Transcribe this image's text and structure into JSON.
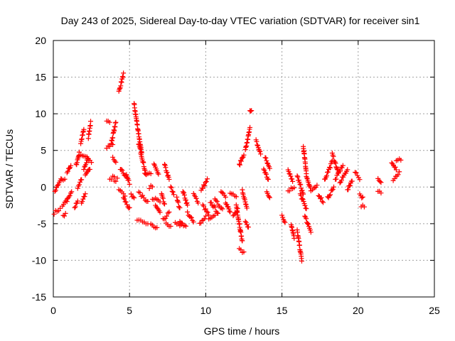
{
  "chart_data": {
    "type": "scatter",
    "title": "Day 243 of 2025, Sidereal Day-to-day VTEC variation (SDTVAR) for receiver sin1",
    "xlabel": "GPS time / hours",
    "ylabel": "SDTVAR / TECUs",
    "xlim": [
      0,
      25
    ],
    "ylim": [
      -15,
      20
    ],
    "x_ticks": [
      0,
      5,
      10,
      15,
      20,
      25
    ],
    "y_ticks": [
      -15,
      -10,
      -5,
      0,
      5,
      10,
      15,
      20
    ],
    "x_tick_labels": [
      "0",
      "5",
      "10",
      "15",
      "20",
      "25"
    ],
    "y_tick_labels": [
      "-15",
      "-10",
      "-5",
      "0",
      "5",
      "10",
      "15",
      "20"
    ],
    "grid": true,
    "marker": "+",
    "series": [
      {
        "name": "sin1",
        "color": "#ff0000",
        "segments": [
          {
            "x": [
              0.05,
              0.45
            ],
            "y": [
              -3.5,
              -3.0
            ]
          },
          {
            "x": [
              0.1,
              0.5
            ],
            "y": [
              -0.6,
              1.0
            ]
          },
          {
            "x": [
              0.6,
              0.9
            ],
            "y": [
              -2.5,
              -1.8
            ]
          },
          {
            "x": [
              0.55,
              0.75
            ],
            "y": [
              1.0,
              0.9
            ]
          },
          {
            "x": [
              0.65,
              0.8
            ],
            "y": [
              -4.0,
              -3.6
            ]
          },
          {
            "x": [
              0.9,
              1.2
            ],
            "y": [
              -1.8,
              -0.8
            ]
          },
          {
            "x": [
              0.9,
              1.15
            ],
            "y": [
              2.0,
              3.0
            ]
          },
          {
            "x": [
              1.4,
              1.6
            ],
            "y": [
              -2.8,
              -2.0
            ]
          },
          {
            "x": [
              1.5,
              1.7
            ],
            "y": [
              3.0,
              4.6
            ]
          },
          {
            "x": [
              1.6,
              1.85
            ],
            "y": [
              0.0,
              1.0
            ]
          },
          {
            "x": [
              1.7,
              2.1
            ],
            "y": [
              4.5,
              4.2
            ]
          },
          {
            "x": [
              1.8,
              2.0
            ],
            "y": [
              6.0,
              7.8
            ]
          },
          {
            "x": [
              1.85,
              2.1
            ],
            "y": [
              -2.2,
              -1.0
            ]
          },
          {
            "x": [
              2.0,
              2.3
            ],
            "y": [
              2.5,
              4.0
            ]
          },
          {
            "x": [
              2.2,
              2.5
            ],
            "y": [
              4.0,
              3.5
            ]
          },
          {
            "x": [
              2.3,
              2.45
            ],
            "y": [
              6.8,
              8.8
            ]
          },
          {
            "x": [
              2.1,
              2.4
            ],
            "y": [
              1.5,
              2.5
            ]
          },
          {
            "x": [
              3.5,
              3.7
            ],
            "y": [
              9.2,
              9.0
            ]
          },
          {
            "x": [
              3.5,
              3.9
            ],
            "y": [
              5.5,
              5.8
            ]
          },
          {
            "x": [
              3.7,
              4.0
            ],
            "y": [
              1.0,
              1.5
            ]
          },
          {
            "x": [
              3.8,
              4.1
            ],
            "y": [
              6.0,
              8.8
            ]
          },
          {
            "x": [
              3.9,
              4.1
            ],
            "y": [
              4.0,
              3.5
            ]
          },
          {
            "x": [
              4.0,
              4.2
            ],
            "y": [
              0.8,
              1.1
            ]
          },
          {
            "x": [
              4.3,
              4.6
            ],
            "y": [
              13.0,
              15.4
            ]
          },
          {
            "x": [
              4.3,
              4.7
            ],
            "y": [
              -0.5,
              -1.2
            ]
          },
          {
            "x": [
              4.4,
              4.9
            ],
            "y": [
              2.5,
              1.0
            ]
          },
          {
            "x": [
              4.6,
              5.0
            ],
            "y": [
              -1.5,
              -3.0
            ]
          },
          {
            "x": [
              4.8,
              5.0
            ],
            "y": [
              1.5,
              0.5
            ]
          },
          {
            "x": [
              5.1,
              5.3
            ],
            "y": [
              -1.0,
              -1.5
            ]
          },
          {
            "x": [
              5.3,
              5.8
            ],
            "y": [
              11.3,
              4.5
            ]
          },
          {
            "x": [
              5.6,
              6.1
            ],
            "y": [
              6.0,
              1.5
            ]
          },
          {
            "x": [
              5.5,
              6.2
            ],
            "y": [
              -4.5,
              -4.9
            ]
          },
          {
            "x": [
              5.6,
              6.2
            ],
            "y": [
              -0.8,
              -2.0
            ]
          },
          {
            "x": [
              6.0,
              6.4
            ],
            "y": [
              2.0,
              1.8
            ]
          },
          {
            "x": [
              6.3,
              6.5
            ],
            "y": [
              -0.2,
              0.2
            ]
          },
          {
            "x": [
              6.4,
              6.8
            ],
            "y": [
              -5.0,
              -5.5
            ]
          },
          {
            "x": [
              6.5,
              7.0
            ],
            "y": [
              -1.5,
              -2.0
            ]
          },
          {
            "x": [
              6.6,
              6.9
            ],
            "y": [
              3.0,
              1.8
            ]
          },
          {
            "x": [
              6.7,
              7.0
            ],
            "y": [
              -2.5,
              -3.5
            ]
          },
          {
            "x": [
              7.1,
              7.3
            ],
            "y": [
              -1.0,
              -2.5
            ]
          },
          {
            "x": [
              7.2,
              7.6
            ],
            "y": [
              -4.5,
              -3.5
            ]
          },
          {
            "x": [
              7.3,
              7.6
            ],
            "y": [
              3.0,
              1.0
            ]
          },
          {
            "x": [
              7.4,
              7.7
            ],
            "y": [
              -5.0,
              -5.5
            ]
          },
          {
            "x": [
              7.7,
              7.9
            ],
            "y": [
              0.0,
              -1.0
            ]
          },
          {
            "x": [
              8.0,
              8.4
            ],
            "y": [
              -4.8,
              -5.3
            ]
          },
          {
            "x": [
              8.1,
              8.3
            ],
            "y": [
              -1.5,
              -3.0
            ]
          },
          {
            "x": [
              8.3,
              8.7
            ],
            "y": [
              -4.5,
              -5.5
            ]
          },
          {
            "x": [
              8.5,
              8.8
            ],
            "y": [
              -0.5,
              -2.5
            ]
          },
          {
            "x": [
              8.8,
              9.2
            ],
            "y": [
              -3.5,
              -4.8
            ]
          },
          {
            "x": [
              9.2,
              9.5
            ],
            "y": [
              -1.0,
              -2.0
            ]
          },
          {
            "x": [
              9.6,
              10.0
            ],
            "y": [
              -5.0,
              -4.0
            ]
          },
          {
            "x": [
              9.7,
              10.1
            ],
            "y": [
              -0.5,
              1.0
            ]
          },
          {
            "x": [
              9.8,
              10.2
            ],
            "y": [
              -2.5,
              -3.8
            ]
          },
          {
            "x": [
              10.2,
              10.6
            ],
            "y": [
              -4.5,
              -4.0
            ]
          },
          {
            "x": [
              10.3,
              10.8
            ],
            "y": [
              -2.0,
              -3.5
            ]
          },
          {
            "x": [
              10.6,
              11.1
            ],
            "y": [
              -1.8,
              -3.0
            ]
          },
          {
            "x": [
              11.0,
              11.3
            ],
            "y": [
              -0.5,
              -1.2
            ]
          },
          {
            "x": [
              11.3,
              11.6
            ],
            "y": [
              -2.0,
              -3.5
            ]
          },
          {
            "x": [
              11.6,
              12.0
            ],
            "y": [
              -0.8,
              -1.5
            ]
          },
          {
            "x": [
              11.8,
              12.1
            ],
            "y": [
              -4.0,
              -3.0
            ]
          },
          {
            "x": [
              12.0,
              12.4
            ],
            "y": [
              -2.5,
              -7.5
            ]
          },
          {
            "x": [
              12.2,
              12.5
            ],
            "y": [
              3.0,
              4.5
            ]
          },
          {
            "x": [
              12.2,
              12.5
            ],
            "y": [
              -8.5,
              -9.0
            ]
          },
          {
            "x": [
              12.4,
              12.7
            ],
            "y": [
              -0.5,
              -3.0
            ]
          },
          {
            "x": [
              12.6,
              12.9
            ],
            "y": [
              5.0,
              8.0
            ]
          },
          {
            "x": [
              12.6,
              12.8
            ],
            "y": [
              -4.5,
              -5.5
            ]
          },
          {
            "x": [
              12.9,
              13.0
            ],
            "y": [
              10.3,
              10.3
            ]
          },
          {
            "x": [
              13.3,
              13.6
            ],
            "y": [
              6.3,
              4.5
            ]
          },
          {
            "x": [
              13.8,
              14.1
            ],
            "y": [
              2.5,
              1.0
            ]
          },
          {
            "x": [
              13.9,
              14.2
            ],
            "y": [
              4.0,
              2.5
            ]
          },
          {
            "x": [
              14.0,
              14.2
            ],
            "y": [
              -0.5,
              -1.5
            ]
          },
          {
            "x": [
              15.0,
              15.2
            ],
            "y": [
              -4.0,
              -4.8
            ]
          },
          {
            "x": [
              15.4,
              15.7
            ],
            "y": [
              2.5,
              0.8
            ]
          },
          {
            "x": [
              15.4,
              15.8
            ],
            "y": [
              -0.5,
              0.0
            ]
          },
          {
            "x": [
              15.6,
              15.8
            ],
            "y": [
              -5.0,
              -7.0
            ]
          },
          {
            "x": [
              16.0,
              16.3
            ],
            "y": [
              -6.0,
              -10.0
            ]
          },
          {
            "x": [
              16.0,
              16.4
            ],
            "y": [
              1.5,
              -1.0
            ]
          },
          {
            "x": [
              16.2,
              16.6
            ],
            "y": [
              -1.0,
              -3.0
            ]
          },
          {
            "x": [
              16.4,
              16.6
            ],
            "y": [
              5.5,
              2.0
            ]
          },
          {
            "x": [
              16.5,
              16.9
            ],
            "y": [
              -4.0,
              -6.0
            ]
          },
          {
            "x": [
              16.6,
              16.9
            ],
            "y": [
              1.5,
              -0.5
            ]
          },
          {
            "x": [
              17.0,
              17.3
            ],
            "y": [
              -0.5,
              0.2
            ]
          },
          {
            "x": [
              17.4,
              17.7
            ],
            "y": [
              -1.0,
              -2.0
            ]
          },
          {
            "x": [
              17.8,
              18.3
            ],
            "y": [
              1.0,
              3.5
            ]
          },
          {
            "x": [
              18.0,
              18.4
            ],
            "y": [
              -1.5,
              0.0
            ]
          },
          {
            "x": [
              18.3,
              18.7
            ],
            "y": [
              4.5,
              2.0
            ]
          },
          {
            "x": [
              18.5,
              19.0
            ],
            "y": [
              1.0,
              3.0
            ]
          },
          {
            "x": [
              18.8,
              19.3
            ],
            "y": [
              0.5,
              2.5
            ]
          },
          {
            "x": [
              19.3,
              19.6
            ],
            "y": [
              -0.5,
              1.0
            ]
          },
          {
            "x": [
              19.8,
              20.1
            ],
            "y": [
              2.0,
              1.2
            ]
          },
          {
            "x": [
              20.1,
              20.3
            ],
            "y": [
              -1.0,
              -1.5
            ]
          },
          {
            "x": [
              20.2,
              20.4
            ],
            "y": [
              -2.5,
              -2.8
            ]
          },
          {
            "x": [
              21.3,
              21.5
            ],
            "y": [
              1.0,
              0.5
            ]
          },
          {
            "x": [
              21.3,
              21.5
            ],
            "y": [
              -0.5,
              -0.8
            ]
          },
          {
            "x": [
              22.2,
              22.5
            ],
            "y": [
              3.5,
              2.5
            ]
          },
          {
            "x": [
              22.3,
              22.7
            ],
            "y": [
              1.0,
              2.0
            ]
          },
          {
            "x": [
              22.5,
              22.8
            ],
            "y": [
              3.5,
              3.8
            ]
          }
        ]
      }
    ]
  }
}
